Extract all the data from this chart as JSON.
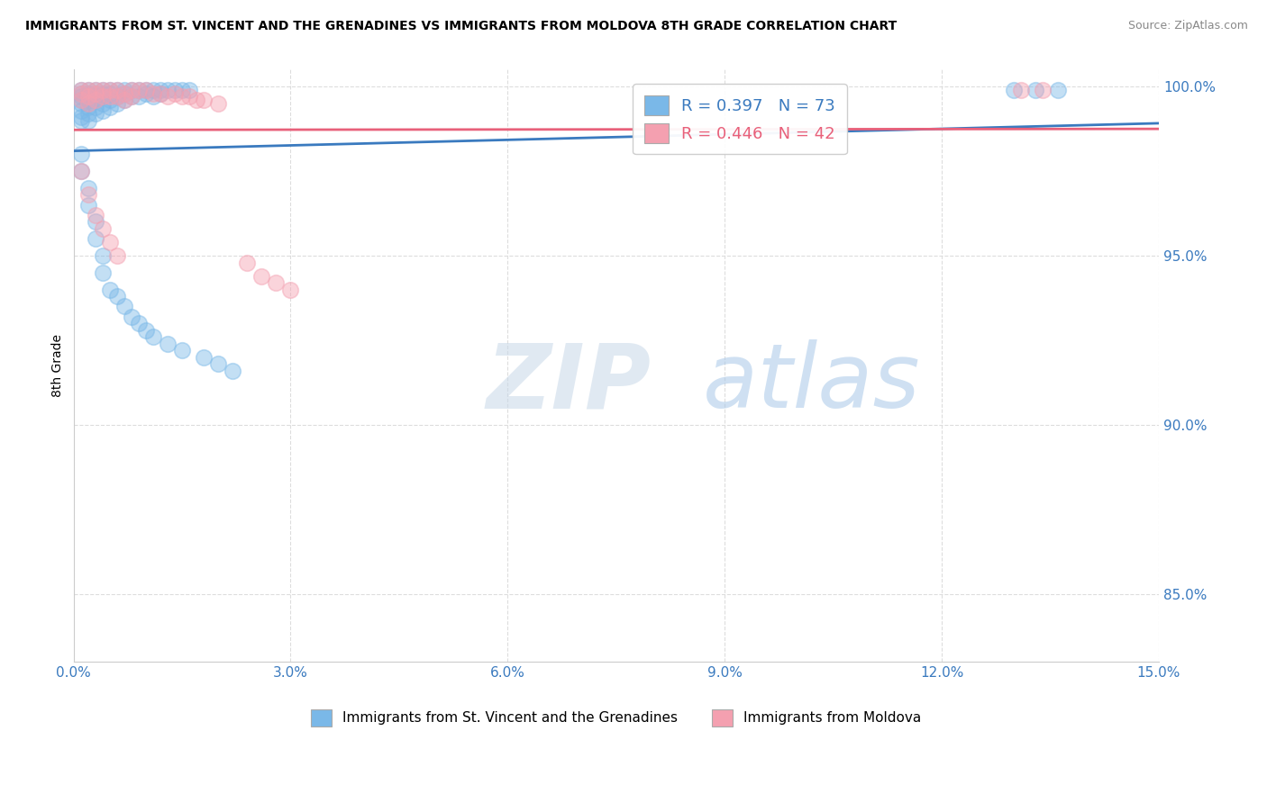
{
  "title": "IMMIGRANTS FROM ST. VINCENT AND THE GRENADINES VS IMMIGRANTS FROM MOLDOVA 8TH GRADE CORRELATION CHART",
  "source": "Source: ZipAtlas.com",
  "ylabel": "8th Grade",
  "xlim": [
    0.0,
    0.15
  ],
  "ylim": [
    0.83,
    1.005
  ],
  "xticks": [
    0.0,
    0.03,
    0.06,
    0.09,
    0.12,
    0.15
  ],
  "xticklabels": [
    "0.0%",
    "3.0%",
    "6.0%",
    "9.0%",
    "12.0%",
    "15.0%"
  ],
  "yticks": [
    0.85,
    0.9,
    0.95,
    1.0
  ],
  "yticklabels": [
    "85.0%",
    "90.0%",
    "95.0%",
    "100.0%"
  ],
  "grid_color": "#dddddd",
  "R_blue": 0.397,
  "N_blue": 73,
  "R_pink": 0.446,
  "N_pink": 42,
  "blue_color": "#7ab8e8",
  "pink_color": "#f4a0b0",
  "blue_line_color": "#3a7abf",
  "pink_line_color": "#e8607a",
  "legend_label_blue": "Immigrants from St. Vincent and the Grenadines",
  "legend_label_pink": "Immigrants from Moldova",
  "watermark_zip": "ZIP",
  "watermark_atlas": "atlas",
  "blue_x": [
    0.001,
    0.001,
    0.001,
    0.001,
    0.001,
    0.001,
    0.001,
    0.001,
    0.002,
    0.002,
    0.002,
    0.002,
    0.002,
    0.002,
    0.002,
    0.003,
    0.003,
    0.003,
    0.003,
    0.003,
    0.003,
    0.004,
    0.004,
    0.004,
    0.004,
    0.004,
    0.005,
    0.005,
    0.005,
    0.005,
    0.006,
    0.006,
    0.006,
    0.007,
    0.007,
    0.007,
    0.008,
    0.008,
    0.009,
    0.009,
    0.01,
    0.01,
    0.011,
    0.011,
    0.012,
    0.012,
    0.013,
    0.014,
    0.015,
    0.016,
    0.001,
    0.001,
    0.002,
    0.002,
    0.003,
    0.003,
    0.004,
    0.004,
    0.005,
    0.006,
    0.007,
    0.008,
    0.009,
    0.01,
    0.011,
    0.013,
    0.015,
    0.018,
    0.02,
    0.022,
    0.13,
    0.133,
    0.136
  ],
  "blue_y": [
    0.999,
    0.998,
    0.997,
    0.996,
    0.995,
    0.993,
    0.991,
    0.99,
    0.999,
    0.998,
    0.997,
    0.996,
    0.994,
    0.992,
    0.99,
    0.999,
    0.998,
    0.997,
    0.996,
    0.994,
    0.992,
    0.999,
    0.998,
    0.997,
    0.995,
    0.993,
    0.999,
    0.998,
    0.996,
    0.994,
    0.999,
    0.997,
    0.995,
    0.999,
    0.998,
    0.996,
    0.999,
    0.997,
    0.999,
    0.997,
    0.999,
    0.998,
    0.999,
    0.997,
    0.999,
    0.998,
    0.999,
    0.999,
    0.999,
    0.999,
    0.98,
    0.975,
    0.97,
    0.965,
    0.96,
    0.955,
    0.95,
    0.945,
    0.94,
    0.938,
    0.935,
    0.932,
    0.93,
    0.928,
    0.926,
    0.924,
    0.922,
    0.92,
    0.918,
    0.916,
    0.999,
    0.999,
    0.999
  ],
  "pink_x": [
    0.001,
    0.001,
    0.001,
    0.002,
    0.002,
    0.002,
    0.003,
    0.003,
    0.003,
    0.004,
    0.004,
    0.005,
    0.005,
    0.006,
    0.006,
    0.007,
    0.007,
    0.008,
    0.008,
    0.009,
    0.01,
    0.011,
    0.012,
    0.013,
    0.014,
    0.015,
    0.016,
    0.017,
    0.018,
    0.02,
    0.001,
    0.002,
    0.003,
    0.004,
    0.005,
    0.006,
    0.024,
    0.026,
    0.028,
    0.03,
    0.131,
    0.134
  ],
  "pink_y": [
    0.999,
    0.998,
    0.996,
    0.999,
    0.997,
    0.995,
    0.999,
    0.998,
    0.996,
    0.999,
    0.997,
    0.999,
    0.997,
    0.999,
    0.997,
    0.998,
    0.996,
    0.999,
    0.997,
    0.999,
    0.999,
    0.998,
    0.998,
    0.997,
    0.998,
    0.997,
    0.997,
    0.996,
    0.996,
    0.995,
    0.975,
    0.968,
    0.962,
    0.958,
    0.954,
    0.95,
    0.948,
    0.944,
    0.942,
    0.94,
    0.999,
    0.999
  ]
}
